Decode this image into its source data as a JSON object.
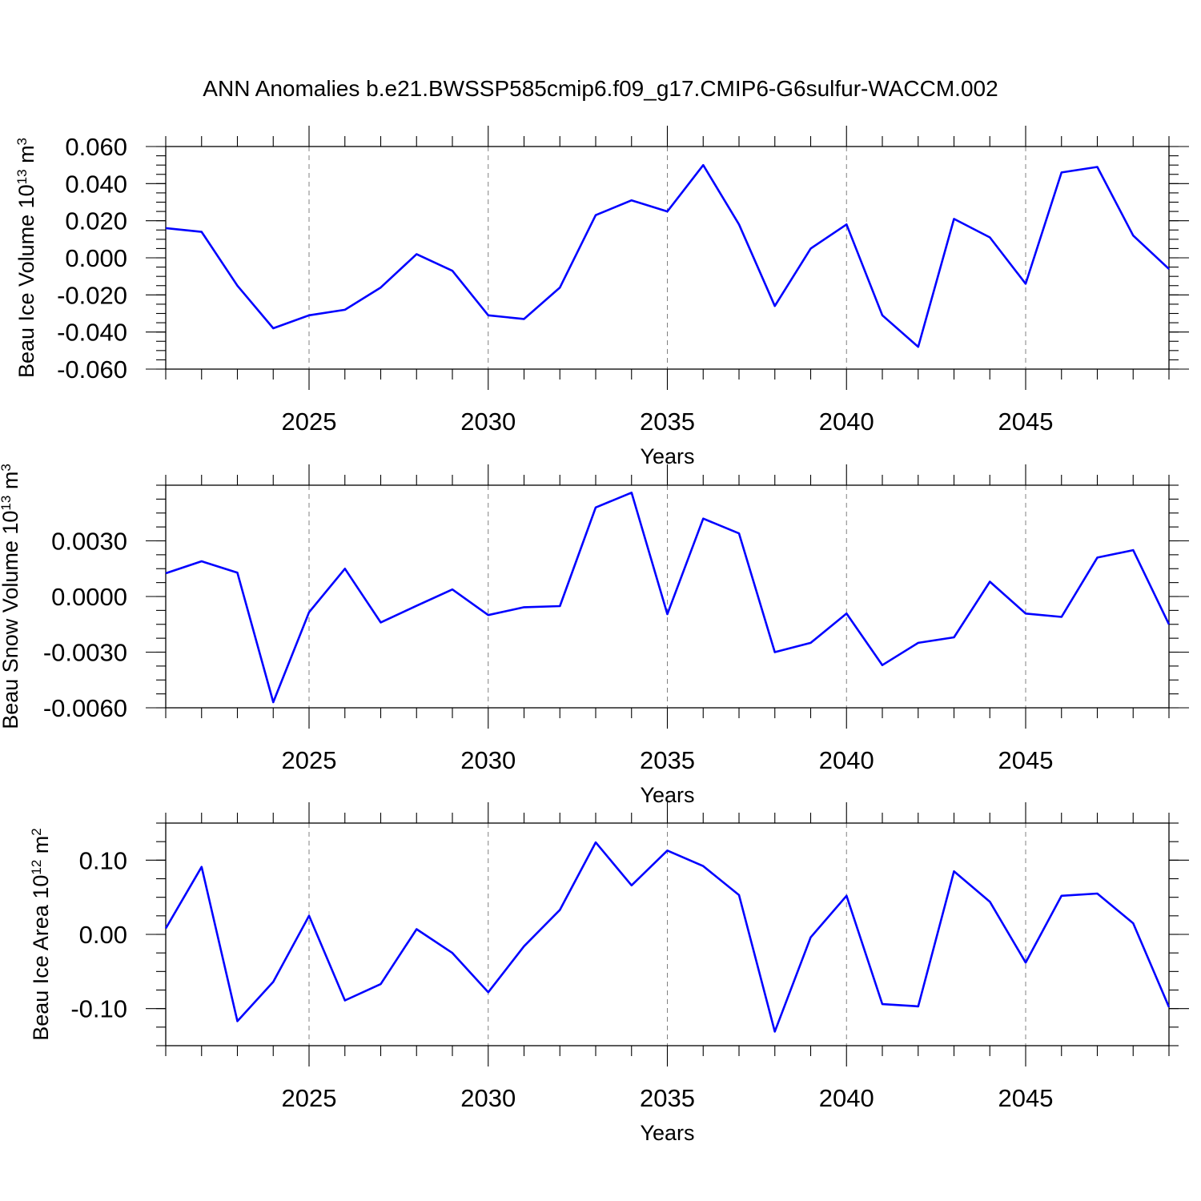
{
  "title": "ANN Anomalies b.e21.BWSSP585cmip6.f09_g17.CMIP6-G6sulfur-WACCM.002",
  "colors": {
    "line": "#0000ff",
    "grid": "#808080",
    "axis": "#000000"
  },
  "chart_data": [
    {
      "type": "line",
      "ylabel": {
        "text": "Beau Ice Volume 10",
        "exp": "13",
        "unit": " m",
        "unit_exp": "3"
      },
      "xlabel": "Years",
      "xlim": [
        2021,
        2049
      ],
      "ylim": [
        -0.06,
        0.06
      ],
      "xticks": [
        2025,
        2030,
        2035,
        2040,
        2045
      ],
      "xtick_labels": [
        "2025",
        "2030",
        "2035",
        "2040",
        "2045"
      ],
      "yticks": [
        -0.06,
        -0.04,
        -0.02,
        0.0,
        0.02,
        0.04,
        0.06
      ],
      "ytick_labels": [
        "-0.060",
        "-0.040",
        "-0.020",
        "0.000",
        "0.020",
        "0.040",
        "0.060"
      ],
      "grid": "vertical dashed at labeled years",
      "series": [
        {
          "x": [
            2021,
            2022,
            2023,
            2024,
            2025,
            2026,
            2027,
            2028,
            2029,
            2030,
            2031,
            2032,
            2033,
            2034,
            2035,
            2036,
            2037,
            2038,
            2039,
            2040,
            2041,
            2042,
            2043,
            2044,
            2045,
            2046,
            2047,
            2048,
            2049
          ],
          "y": [
            0.016,
            0.014,
            -0.015,
            -0.038,
            -0.031,
            -0.028,
            -0.016,
            0.002,
            -0.007,
            -0.031,
            -0.033,
            -0.016,
            0.023,
            0.031,
            0.025,
            0.05,
            0.018,
            -0.026,
            0.005,
            0.018,
            -0.031,
            -0.048,
            0.021,
            0.011,
            -0.014,
            0.046,
            0.049,
            0.012,
            -0.006
          ]
        }
      ]
    },
    {
      "type": "line",
      "ylabel": {
        "text": "Beau Snow Volume 10",
        "exp": "13",
        "unit": " m",
        "unit_exp": "3"
      },
      "xlabel": "Years",
      "xlim": [
        2021,
        2049
      ],
      "ylim": [
        -0.006,
        0.006
      ],
      "xticks": [
        2025,
        2030,
        2035,
        2040,
        2045
      ],
      "xtick_labels": [
        "2025",
        "2030",
        "2035",
        "2040",
        "2045"
      ],
      "yticks": [
        -0.006,
        -0.003,
        0.0,
        0.003
      ],
      "ytick_labels": [
        "-0.0060",
        "-0.0030",
        "0.0000",
        "0.0030"
      ],
      "grid": "vertical dashed at labeled years",
      "series": [
        {
          "x": [
            2021,
            2022,
            2023,
            2024,
            2025,
            2026,
            2027,
            2028,
            2029,
            2030,
            2031,
            2032,
            2033,
            2034,
            2035,
            2036,
            2037,
            2038,
            2039,
            2040,
            2041,
            2042,
            2043,
            2044,
            2045,
            2046,
            2047,
            2048,
            2049
          ],
          "y": [
            0.00125,
            0.0019,
            0.00128,
            -0.0057,
            -0.00085,
            0.0015,
            -0.0014,
            -0.0005,
            0.00038,
            -0.001,
            -0.00058,
            -0.00052,
            0.0048,
            0.0056,
            -0.00095,
            0.0042,
            0.0034,
            -0.003,
            -0.0025,
            -0.00092,
            -0.0037,
            -0.0025,
            -0.0022,
            0.0008,
            -0.00092,
            -0.0011,
            0.0021,
            0.0025,
            -0.0015
          ]
        }
      ]
    },
    {
      "type": "line",
      "ylabel": {
        "text": "Beau Ice Area 10",
        "exp": "12",
        "unit": " m",
        "unit_exp": "2"
      },
      "xlabel": "Years",
      "xlim": [
        2021,
        2049
      ],
      "ylim": [
        -0.15,
        0.15
      ],
      "xticks": [
        2025,
        2030,
        2035,
        2040,
        2045
      ],
      "xtick_labels": [
        "2025",
        "2030",
        "2035",
        "2040",
        "2045"
      ],
      "yticks": [
        -0.1,
        0.0,
        0.1
      ],
      "ytick_labels": [
        "-0.10",
        "0.00",
        "0.10"
      ],
      "grid": "vertical dashed at labeled years",
      "series": [
        {
          "x": [
            2021,
            2022,
            2023,
            2024,
            2025,
            2026,
            2027,
            2028,
            2029,
            2030,
            2031,
            2032,
            2033,
            2034,
            2035,
            2036,
            2037,
            2038,
            2039,
            2040,
            2041,
            2042,
            2043,
            2044,
            2045,
            2046,
            2047,
            2048,
            2049
          ],
          "y": [
            0.008,
            0.091,
            -0.117,
            -0.064,
            0.025,
            -0.089,
            -0.067,
            0.007,
            -0.025,
            -0.078,
            -0.016,
            0.033,
            0.124,
            0.066,
            0.113,
            0.092,
            0.053,
            -0.131,
            -0.004,
            0.052,
            -0.094,
            -0.097,
            0.085,
            0.044,
            -0.038,
            0.052,
            0.055,
            0.015,
            -0.098
          ]
        }
      ]
    }
  ]
}
